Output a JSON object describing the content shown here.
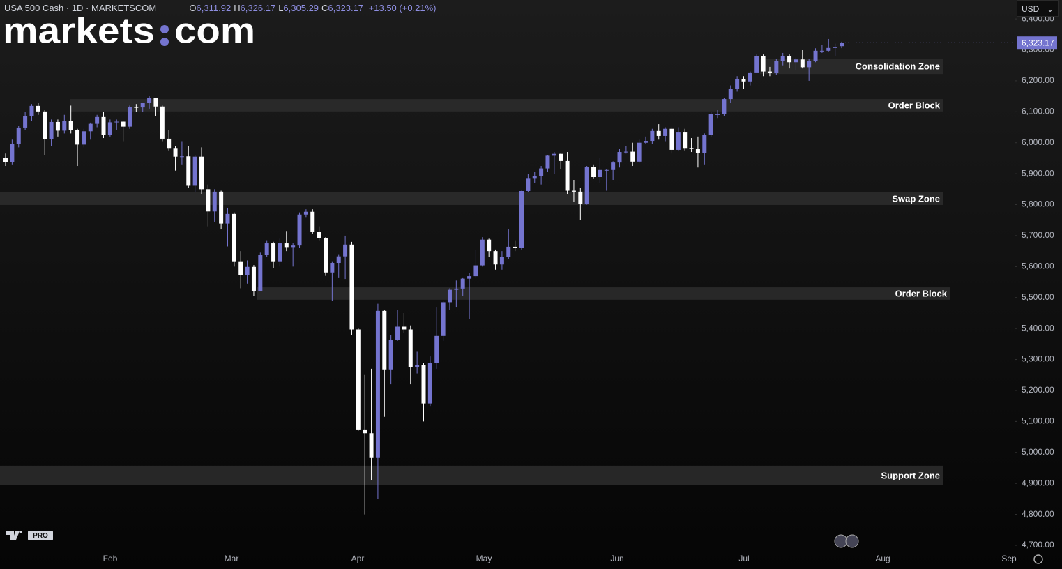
{
  "header": {
    "symbol": "USA 500 Cash · 1D · MARKETSCOM",
    "ohlc": [
      {
        "key": "O",
        "value": "6,311.92"
      },
      {
        "key": "H",
        "value": "6,326.17"
      },
      {
        "key": "L",
        "value": "6,305.29"
      },
      {
        "key": "C",
        "value": "6,323.17"
      }
    ],
    "change": "+13.50 (+0.21%)",
    "currency": "USD"
  },
  "logo": {
    "left": "markets",
    "right": "com",
    "badge": "PRO"
  },
  "chart_data": {
    "type": "candlestick",
    "up_color": "#7474cf",
    "down_color": "#ffffff",
    "zone_color": "#2b2b2b",
    "ylim": [
      4682,
      6461
    ],
    "yticks": [
      {
        "value": 4700,
        "label": "4,700.00"
      },
      {
        "value": 4800,
        "label": "4,800.00"
      },
      {
        "value": 4900,
        "label": "4,900.00"
      },
      {
        "value": 5000,
        "label": "5,000.00"
      },
      {
        "value": 5100,
        "label": "5,100.00"
      },
      {
        "value": 5200,
        "label": "5,200.00"
      },
      {
        "value": 5300,
        "label": "5,300.00"
      },
      {
        "value": 5400,
        "label": "5,400.00"
      },
      {
        "value": 5500,
        "label": "5,500.00"
      },
      {
        "value": 5600,
        "label": "5,600.00"
      },
      {
        "value": 5700,
        "label": "5,700.00"
      },
      {
        "value": 5800,
        "label": "5,800.00"
      },
      {
        "value": 5900,
        "label": "5,900.00"
      },
      {
        "value": 6000,
        "label": "6,000.00"
      },
      {
        "value": 6100,
        "label": "6,100.00"
      },
      {
        "value": 6200,
        "label": "6,200.00"
      },
      {
        "value": 6300,
        "label": "6,300.00"
      },
      {
        "value": 6400,
        "label": "6,400.00"
      }
    ],
    "x_labels": [
      "Feb",
      "Mar",
      "Apr",
      "May",
      "Jun",
      "Jul",
      "Aug",
      "Sep"
    ],
    "last_price": 6323.17,
    "last_price_label": "6,323.17",
    "zones": [
      {
        "label": "Consolidation Zone",
        "low": 6222,
        "high": 6272
      },
      {
        "label": "Order Block",
        "low": 6101,
        "high": 6141
      },
      {
        "label": "Swap Zone",
        "low": 5799,
        "high": 5840
      },
      {
        "label": "Order Block",
        "low": 5493,
        "high": 5533
      },
      {
        "label": "Support Zone",
        "low": 4894,
        "high": 4957
      }
    ],
    "candles": [
      [
        5950,
        5965,
        5925,
        5937
      ],
      [
        5937,
        6010,
        5930,
        5997
      ],
      [
        5997,
        6055,
        5985,
        6049
      ],
      [
        6049,
        6100,
        6040,
        6086
      ],
      [
        6086,
        6125,
        6070,
        6119
      ],
      [
        6119,
        6130,
        6090,
        6101
      ],
      [
        6101,
        6105,
        5960,
        6012
      ],
      [
        6012,
        6075,
        5990,
        6067
      ],
      [
        6067,
        6075,
        6020,
        6039
      ],
      [
        6039,
        6090,
        6030,
        6071
      ],
      [
        6071,
        6120,
        6030,
        6040
      ],
      [
        6040,
        6045,
        5925,
        5994
      ],
      [
        5994,
        6045,
        5985,
        6037
      ],
      [
        6037,
        6065,
        6010,
        6061
      ],
      [
        6061,
        6090,
        6050,
        6083
      ],
      [
        6083,
        6100,
        6015,
        6026
      ],
      [
        6026,
        6075,
        6020,
        6066
      ],
      [
        6066,
        6075,
        6040,
        6068
      ],
      [
        6068,
        6070,
        6005,
        6052
      ],
      [
        6052,
        6120,
        6045,
        6115
      ],
      [
        6115,
        6125,
        6100,
        6114
      ],
      [
        6114,
        6130,
        6100,
        6129
      ],
      [
        6129,
        6150,
        6110,
        6144
      ],
      [
        6144,
        6145,
        6085,
        6117
      ],
      [
        6117,
        6120,
        6005,
        6013
      ],
      [
        6013,
        6040,
        5975,
        5983
      ],
      [
        5983,
        5990,
        5910,
        5955
      ],
      [
        5955,
        6005,
        5930,
        5956
      ],
      [
        5956,
        5990,
        5855,
        5861
      ],
      [
        5861,
        5960,
        5840,
        5955
      ],
      [
        5955,
        5985,
        5835,
        5850
      ],
      [
        5850,
        5865,
        5730,
        5778
      ],
      [
        5778,
        5850,
        5745,
        5842
      ],
      [
        5842,
        5845,
        5720,
        5739
      ],
      [
        5739,
        5790,
        5665,
        5770
      ],
      [
        5770,
        5775,
        5600,
        5615
      ],
      [
        5615,
        5650,
        5530,
        5572
      ],
      [
        5572,
        5620,
        5545,
        5599
      ],
      [
        5599,
        5605,
        5505,
        5522
      ],
      [
        5522,
        5645,
        5520,
        5639
      ],
      [
        5639,
        5685,
        5630,
        5675
      ],
      [
        5675,
        5680,
        5595,
        5615
      ],
      [
        5615,
        5690,
        5600,
        5675
      ],
      [
        5675,
        5715,
        5650,
        5663
      ],
      [
        5663,
        5675,
        5600,
        5668
      ],
      [
        5668,
        5775,
        5660,
        5768
      ],
      [
        5768,
        5785,
        5760,
        5777
      ],
      [
        5777,
        5785,
        5705,
        5712
      ],
      [
        5712,
        5730,
        5685,
        5693
      ],
      [
        5693,
        5695,
        5570,
        5581
      ],
      [
        5581,
        5615,
        5490,
        5612
      ],
      [
        5612,
        5640,
        5565,
        5633
      ],
      [
        5633,
        5700,
        5560,
        5671
      ],
      [
        5671,
        5680,
        5380,
        5397
      ],
      [
        5397,
        5400,
        5070,
        5074
      ],
      [
        5074,
        5250,
        4800,
        5062
      ],
      [
        5062,
        5270,
        4910,
        4982
      ],
      [
        4982,
        5480,
        4850,
        5457
      ],
      [
        5457,
        5460,
        5115,
        5268
      ],
      [
        5268,
        5380,
        5220,
        5363
      ],
      [
        5363,
        5460,
        5360,
        5406
      ],
      [
        5406,
        5450,
        5385,
        5397
      ],
      [
        5397,
        5410,
        5220,
        5276
      ],
      [
        5276,
        5325,
        5255,
        5283
      ],
      [
        5283,
        5290,
        5100,
        5158
      ],
      [
        5158,
        5310,
        5150,
        5288
      ],
      [
        5288,
        5470,
        5270,
        5376
      ],
      [
        5376,
        5490,
        5360,
        5485
      ],
      [
        5485,
        5530,
        5460,
        5525
      ],
      [
        5525,
        5555,
        5470,
        5529
      ],
      [
        5529,
        5565,
        5505,
        5561
      ],
      [
        5561,
        5580,
        5430,
        5569
      ],
      [
        5569,
        5655,
        5565,
        5604
      ],
      [
        5604,
        5695,
        5600,
        5687
      ],
      [
        5687,
        5690,
        5630,
        5650
      ],
      [
        5650,
        5655,
        5590,
        5607
      ],
      [
        5607,
        5650,
        5590,
        5631
      ],
      [
        5631,
        5720,
        5625,
        5664
      ],
      [
        5664,
        5685,
        5650,
        5660
      ],
      [
        5660,
        5845,
        5655,
        5844
      ],
      [
        5844,
        5900,
        5840,
        5886
      ],
      [
        5886,
        5905,
        5870,
        5892
      ],
      [
        5892,
        5925,
        5865,
        5917
      ],
      [
        5917,
        5960,
        5905,
        5958
      ],
      [
        5958,
        5970,
        5900,
        5964
      ],
      [
        5964,
        5965,
        5915,
        5941
      ],
      [
        5941,
        5970,
        5835,
        5845
      ],
      [
        5845,
        5880,
        5810,
        5842
      ],
      [
        5842,
        5855,
        5750,
        5802
      ],
      [
        5802,
        5925,
        5800,
        5922
      ],
      [
        5922,
        5930,
        5885,
        5889
      ],
      [
        5889,
        5950,
        5870,
        5912
      ],
      [
        5912,
        5915,
        5845,
        5912
      ],
      [
        5912,
        5940,
        5880,
        5936
      ],
      [
        5936,
        5980,
        5920,
        5970
      ],
      [
        5970,
        5990,
        5965,
        5971
      ],
      [
        5971,
        6000,
        5925,
        5939
      ],
      [
        5939,
        6010,
        5935,
        6000
      ],
      [
        6000,
        6020,
        5995,
        6006
      ],
      [
        6006,
        6045,
        5995,
        6038
      ],
      [
        6038,
        6060,
        6010,
        6022
      ],
      [
        6022,
        6050,
        6005,
        6045
      ],
      [
        6045,
        6050,
        5965,
        5977
      ],
      [
        5977,
        6050,
        5975,
        6033
      ],
      [
        6033,
        6045,
        5975,
        5983
      ],
      [
        5983,
        6015,
        5970,
        5981
      ],
      [
        5981,
        6020,
        5920,
        5967
      ],
      [
        5967,
        6030,
        5930,
        6025
      ],
      [
        6025,
        6100,
        6020,
        6092
      ],
      [
        6092,
        6105,
        6080,
        6092
      ],
      [
        6092,
        6145,
        6085,
        6141
      ],
      [
        6141,
        6185,
        6130,
        6173
      ],
      [
        6173,
        6215,
        6165,
        6205
      ],
      [
        6205,
        6215,
        6175,
        6198
      ],
      [
        6198,
        6230,
        6185,
        6227
      ],
      [
        6227,
        6285,
        6225,
        6279
      ],
      [
        6279,
        6285,
        6215,
        6230
      ],
      [
        6230,
        6245,
        6215,
        6226
      ],
      [
        6226,
        6270,
        6220,
        6263
      ],
      [
        6263,
        6290,
        6250,
        6280
      ],
      [
        6280,
        6285,
        6240,
        6260
      ],
      [
        6260,
        6275,
        6235,
        6269
      ],
      [
        6269,
        6300,
        6240,
        6244
      ],
      [
        6244,
        6270,
        6200,
        6264
      ],
      [
        6264,
        6305,
        6260,
        6297
      ],
      [
        6297,
        6315,
        6290,
        6297
      ],
      [
        6297,
        6335,
        6295,
        6306
      ],
      [
        6306,
        6320,
        6280,
        6309
      ],
      [
        6311.92,
        6326.17,
        6305.29,
        6323.17
      ]
    ]
  }
}
